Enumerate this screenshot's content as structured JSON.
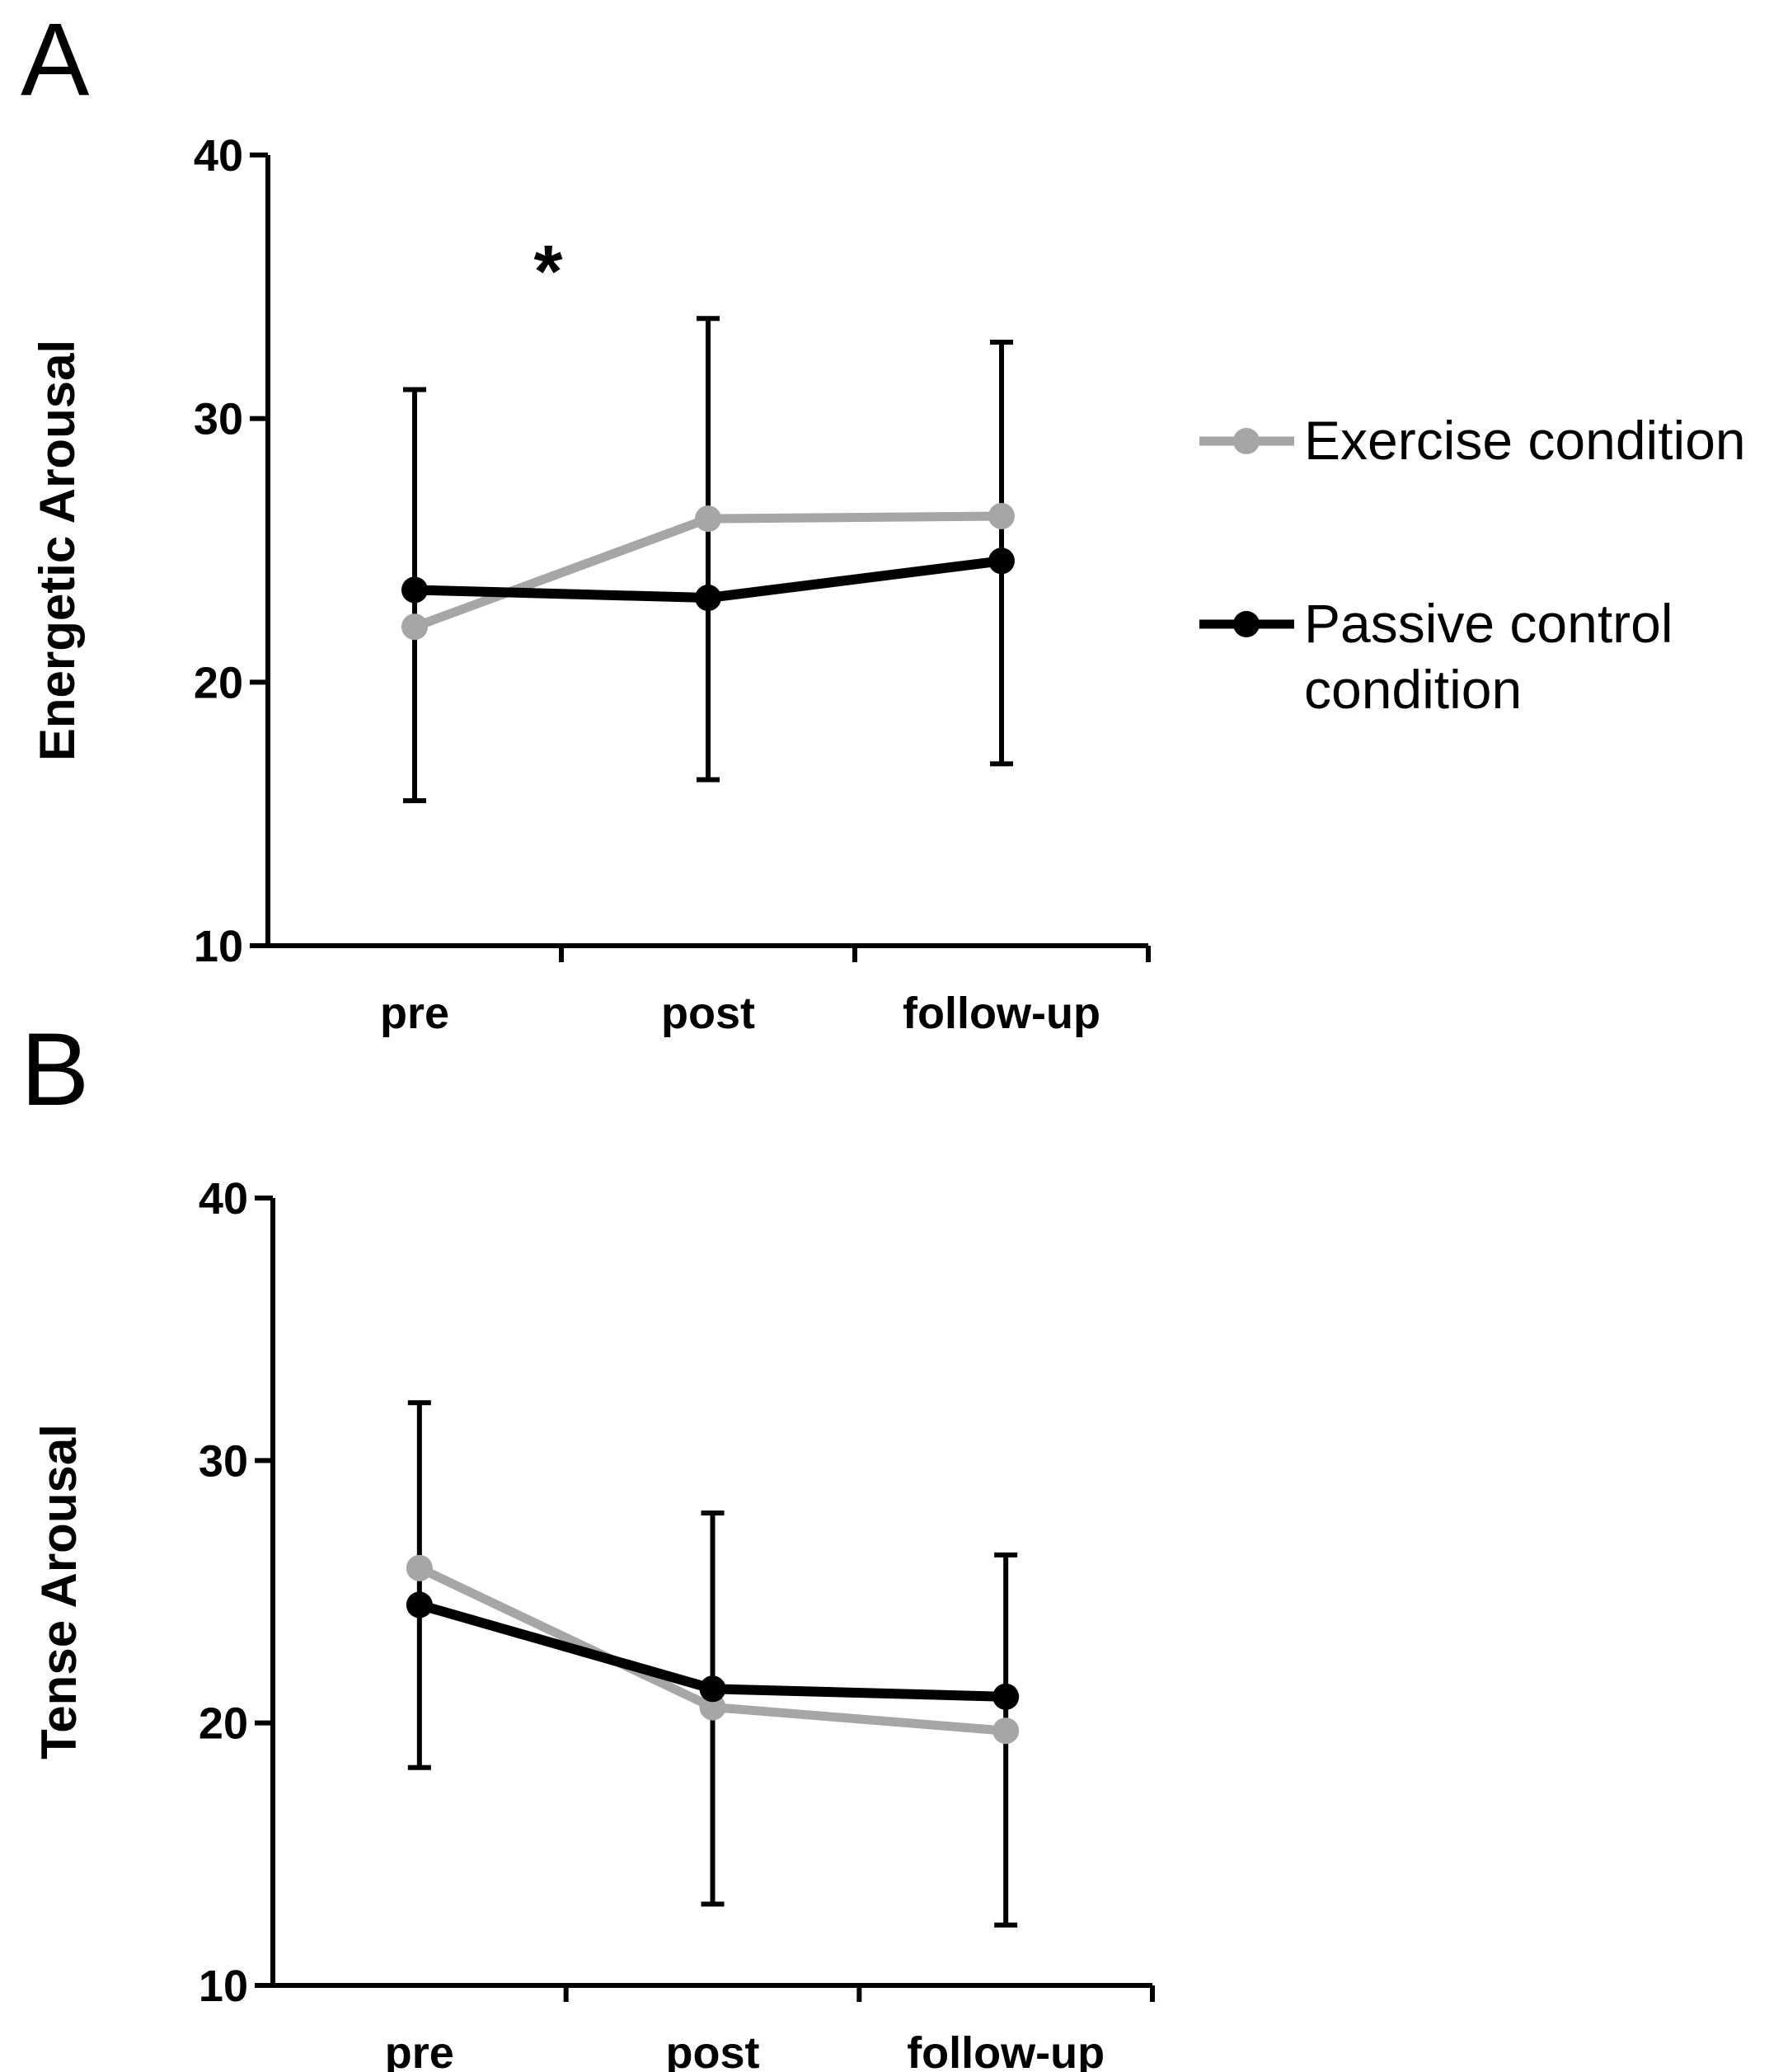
{
  "chart_data": [
    {
      "panel": "A",
      "type": "line",
      "ylabel": "Energetic Arousal",
      "xlabel": "",
      "categories": [
        "pre",
        "post",
        "follow-up"
      ],
      "ylim": [
        10,
        40
      ],
      "yticks": [
        10,
        20,
        30,
        40
      ],
      "annotation": "*",
      "series": [
        {
          "name": "Exercise condition",
          "color": "#a6a6a6",
          "values": [
            22.1,
            26.2,
            26.3
          ]
        },
        {
          "name": "Passive control condition",
          "color": "#000000",
          "values": [
            23.5,
            23.2,
            24.6
          ],
          "error_bars": [
            [
              15.5,
              31.1
            ],
            [
              16.3,
              33.8
            ],
            [
              16.9,
              32.9
            ]
          ]
        }
      ]
    },
    {
      "panel": "B",
      "type": "line",
      "ylabel": "Tense Arousal",
      "xlabel": "",
      "categories": [
        "pre",
        "post",
        "follow-up"
      ],
      "ylim": [
        10,
        40
      ],
      "yticks": [
        10,
        20,
        30,
        40
      ],
      "series": [
        {
          "name": "Exercise condition",
          "color": "#a6a6a6",
          "values": [
            25.9,
            20.6,
            19.7
          ]
        },
        {
          "name": "Passive control condition",
          "color": "#000000",
          "values": [
            24.5,
            21.3,
            21.0
          ],
          "error_bars": [
            [
              18.3,
              32.2
            ],
            [
              13.1,
              28.0
            ],
            [
              12.3,
              26.4
            ]
          ]
        }
      ]
    }
  ],
  "legend": {
    "items": [
      {
        "label_lines": [
          "Exercise condition"
        ],
        "color": "#a6a6a6"
      },
      {
        "label_lines": [
          "Passive control",
          "condition"
        ],
        "color": "#000000"
      }
    ]
  }
}
